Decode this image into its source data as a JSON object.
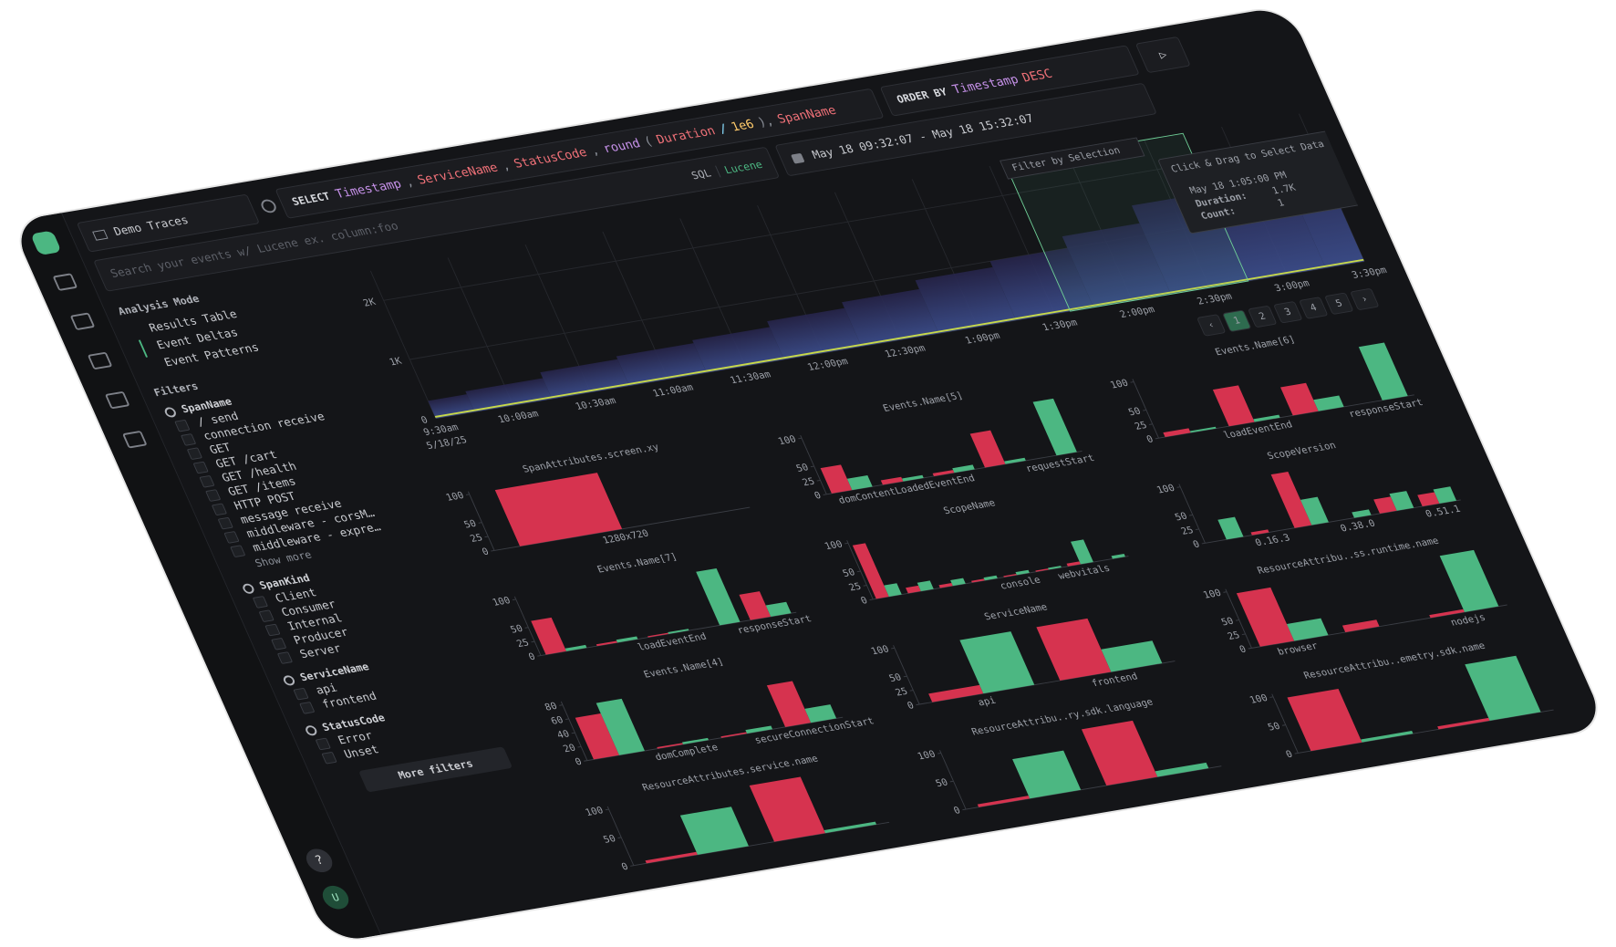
{
  "top_bar": {
    "source": "Demo Traces",
    "query": {
      "keyword": "SELECT",
      "tokens": [
        {
          "text": "Timestamp",
          "color": "#c792ea"
        },
        {
          "text": ",",
          "color": "#8a8f98"
        },
        {
          "text": "ServiceName",
          "color": "#f07178"
        },
        {
          "text": ",",
          "color": "#8a8f98"
        },
        {
          "text": "StatusCode",
          "color": "#f07178"
        },
        {
          "text": ",",
          "color": "#8a8f98"
        },
        {
          "text": "round",
          "color": "#c792ea"
        },
        {
          "text": "(",
          "color": "#8a8f98"
        },
        {
          "text": "Duration",
          "color": "#f07178"
        },
        {
          "text": "/",
          "color": "#89ddff"
        },
        {
          "text": "1e6",
          "color": "#ffcb6b"
        },
        {
          "text": "),",
          "color": "#8a8f98"
        },
        {
          "text": "SpanName",
          "color": "#f07178"
        }
      ]
    },
    "order_by": {
      "keyword": "ORDER BY",
      "tokens": [
        {
          "text": "Timestamp",
          "color": "#c792ea"
        },
        {
          "text": "DESC",
          "color": "#f07178"
        }
      ]
    },
    "run": "▷",
    "search_placeholder": "Search your events w/ Lucene ex. column:foo",
    "languages": [
      "SQL",
      "Lucene"
    ],
    "active_language": 1,
    "time_range": "May 18 09:32:07 - May 18 15:32:07"
  },
  "sidebar": {
    "analysis_title": "Analysis Mode",
    "modes": [
      "Results Table",
      "Event Deltas",
      "Event Patterns"
    ],
    "active_mode": 1,
    "filters_title": "Filters",
    "groups": [
      {
        "name": "SpanName",
        "options": [
          "/ send",
          "connection receive",
          "GET",
          "GET /cart",
          "GET /health",
          "GET /items",
          "HTTP POST",
          "message receive",
          "middleware - corsM…",
          "middleware - expre…"
        ],
        "more": "Show more"
      },
      {
        "name": "SpanKind",
        "options": [
          "Client",
          "Consumer",
          "Internal",
          "Producer",
          "Server"
        ]
      },
      {
        "name": "ServiceName",
        "options": [
          "api",
          "frontend"
        ]
      },
      {
        "name": "StatusCode",
        "options": [
          "Error",
          "Unset"
        ]
      }
    ],
    "more_filters": "More filters",
    "help": "?",
    "avatar": "U"
  },
  "heatmap": {
    "ylim": [
      0,
      2500
    ],
    "yticks": [
      {
        "value": 2000,
        "label": "2K"
      },
      {
        "value": 1000,
        "label": "1K"
      },
      0
    ],
    "x_labels": [
      "9:30am",
      "10:00am",
      "10:30am",
      "11:00am",
      "11:30am",
      "12:00pm",
      "12:30pm",
      "1:00pm",
      "1:30pm",
      "2:00pm",
      "2:30pm",
      "3:00pm",
      "3:30pm"
    ],
    "x_date": "5/18/25",
    "values": [
      300,
      350,
      450,
      500,
      550,
      650,
      750,
      900,
      1000,
      1200,
      1500,
      1800,
      2100
    ],
    "selection_label": "Filter by Selection",
    "tooltip": {
      "hint": "Click & Drag to Select Data",
      "time": "May 18 1:05:00 PM",
      "rows": [
        {
          "label": "Duration:",
          "value": "1.7K"
        },
        {
          "label": "Count:",
          "value": "1"
        }
      ]
    }
  },
  "pagination": {
    "prev": "‹",
    "pages": [
      1,
      2,
      3,
      4,
      5
    ],
    "active": 0,
    "next": "›"
  },
  "charts": [
    {
      "type": "bar",
      "title": "SpanAttributes.screen.xy",
      "categories": [
        "1280x720"
      ],
      "ylim": [
        0,
        105
      ],
      "yticks": [
        0,
        25,
        50,
        100
      ],
      "series": [
        {
          "color": "#d6334f",
          "values": [
            100
          ]
        },
        {
          "color": "#4cb782",
          "values": [
            0
          ]
        }
      ]
    },
    {
      "type": "bar",
      "title": "Events.Name[5]",
      "categories": [
        null,
        "domContentLoadedEventEnd",
        null,
        null,
        "requestStart"
      ],
      "ylim": [
        0,
        105
      ],
      "yticks": [
        0,
        25,
        50,
        100
      ],
      "series": [
        {
          "color": "#d6334f",
          "values": [
            45,
            8,
            5,
            60,
            0
          ]
        },
        {
          "color": "#4cb782",
          "values": [
            20,
            5,
            8,
            5,
            95
          ]
        }
      ]
    },
    {
      "type": "bar",
      "title": "Events.Name[6]",
      "categories": [
        null,
        "loadEventEnd",
        null,
        "responseStart"
      ],
      "ylim": [
        0,
        105
      ],
      "yticks": [
        0,
        25,
        50,
        100
      ],
      "series": [
        {
          "color": "#d6334f",
          "values": [
            8,
            65,
            50,
            0
          ]
        },
        {
          "color": "#4cb782",
          "values": [
            3,
            5,
            20,
            95
          ]
        }
      ]
    },
    {
      "type": "bar",
      "title": "Events.Name[7]",
      "categories": [
        null,
        null,
        "loadEventEnd",
        null,
        "responseStart"
      ],
      "ylim": [
        0,
        105
      ],
      "yticks": [
        0,
        25,
        50,
        100
      ],
      "series": [
        {
          "color": "#d6334f",
          "values": [
            60,
            3,
            2,
            0,
            45
          ]
        },
        {
          "color": "#4cb782",
          "values": [
            5,
            5,
            3,
            95,
            20
          ]
        }
      ]
    },
    {
      "type": "bar",
      "title": "ScopeName",
      "categories": [
        null,
        null,
        null,
        null,
        "console",
        null,
        "webvitals",
        null
      ],
      "ylim": [
        0,
        105
      ],
      "yticks": [
        0,
        25,
        50,
        100
      ],
      "series": [
        {
          "color": "#d6334f",
          "values": [
            95,
            10,
            5,
            3,
            2,
            2,
            5,
            0
          ]
        },
        {
          "color": "#4cb782",
          "values": [
            20,
            15,
            10,
            5,
            5,
            3,
            40,
            5
          ]
        }
      ]
    },
    {
      "type": "bar",
      "title": "ScopeVersion",
      "categories": [
        null,
        "0.16.3",
        null,
        "0.38.0",
        null,
        "0.51.1"
      ],
      "ylim": [
        0,
        105
      ],
      "yticks": [
        0,
        25,
        50,
        100
      ],
      "series": [
        {
          "color": "#d6334f",
          "values": [
            0,
            5,
            95,
            0,
            25,
            20
          ]
        },
        {
          "color": "#4cb782",
          "values": [
            35,
            0,
            45,
            10,
            30,
            25
          ]
        }
      ]
    },
    {
      "type": "bar",
      "title": "Events.Name[4]",
      "categories": [
        null,
        "domComplete",
        null,
        "secureConnectionStart"
      ],
      "ylim": [
        0,
        85
      ],
      "yticks": [
        0,
        20,
        40,
        60,
        80
      ],
      "series": [
        {
          "color": "#d6334f",
          "values": [
            60,
            2,
            2,
            60
          ]
        },
        {
          "color": "#4cb782",
          "values": [
            75,
            3,
            5,
            20
          ]
        }
      ]
    },
    {
      "type": "bar",
      "title": "ServiceName",
      "categories": [
        "api",
        "frontend"
      ],
      "ylim": [
        0,
        105
      ],
      "yticks": [
        0,
        25,
        50,
        100
      ],
      "series": [
        {
          "color": "#d6334f",
          "values": [
            15,
            95
          ]
        },
        {
          "color": "#4cb782",
          "values": [
            95,
            40
          ]
        }
      ]
    },
    {
      "type": "bar",
      "title": "ResourceAttribu..ss.runtime.name",
      "categories": [
        "browser",
        null,
        "nodejs"
      ],
      "ylim": [
        0,
        105
      ],
      "yticks": [
        0,
        25,
        50,
        100
      ],
      "series": [
        {
          "color": "#d6334f",
          "values": [
            95,
            12,
            5
          ]
        },
        {
          "color": "#4cb782",
          "values": [
            30,
            0,
            100
          ]
        }
      ]
    },
    {
      "type": "bar",
      "title": "ResourceAttributes.service.name",
      "categories": [
        null,
        null
      ],
      "ylim": [
        0,
        105
      ],
      "yticks": [
        0,
        50,
        100
      ],
      "series": [
        {
          "color": "#d6334f",
          "values": [
            5,
            100
          ]
        },
        {
          "color": "#4cb782",
          "values": [
            70,
            5
          ]
        }
      ]
    },
    {
      "type": "bar",
      "title": "ResourceAttribu..ry.sdk.language",
      "categories": [
        null,
        null
      ],
      "ylim": [
        0,
        105
      ],
      "yticks": [
        0,
        50,
        100
      ],
      "series": [
        {
          "color": "#d6334f",
          "values": [
            5,
            100
          ]
        },
        {
          "color": "#4cb782",
          "values": [
            70,
            10
          ]
        }
      ]
    },
    {
      "type": "bar",
      "title": "ResourceAttribu..emetry.sdk.name",
      "categories": [
        null,
        null
      ],
      "ylim": [
        0,
        105
      ],
      "yticks": [
        0,
        50,
        100
      ],
      "series": [
        {
          "color": "#d6334f",
          "values": [
            95,
            5
          ]
        },
        {
          "color": "#4cb782",
          "values": [
            5,
            100
          ]
        }
      ]
    }
  ]
}
